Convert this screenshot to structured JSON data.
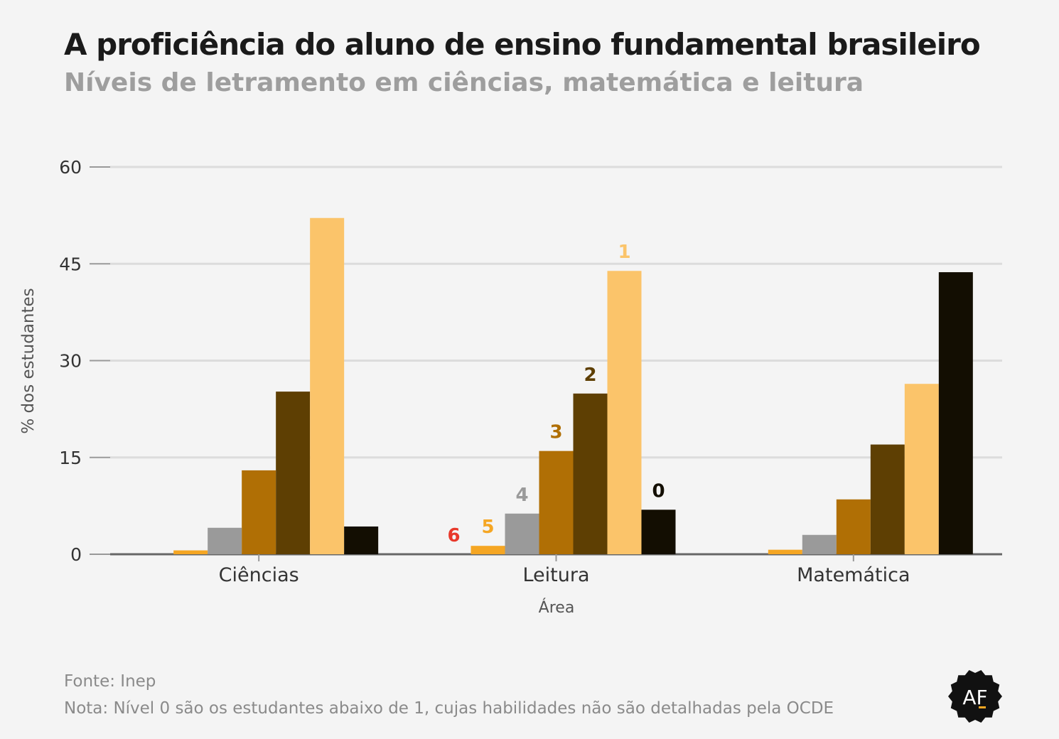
{
  "title": "A proficiência do aluno de ensino fundamental brasileiro",
  "subtitle": "Níveis de letramento em ciências, matemática e leitura",
  "footer": {
    "source": "Fonte: Inep",
    "note": "Nota: Nível 0 são os estudantes abaixo de 1, cujas habilidades não são detalhadas pela OCDE"
  },
  "logo": {
    "text": "AF",
    "icon": "af-seal-logo"
  },
  "colors": {
    "background": "#f4f4f4",
    "grid": "#dcdcdc",
    "axis": "#666666",
    "text": "#333333"
  },
  "chart_data": {
    "type": "bar",
    "xlabel": "Área",
    "ylabel": "% dos estudantes",
    "ylim": [
      0,
      60
    ],
    "yticks": [
      0,
      15,
      30,
      45,
      60
    ],
    "grid": true,
    "categories": [
      "Ciências",
      "Leitura",
      "Matemática"
    ],
    "series": [
      {
        "name": "6",
        "color": "#e8392b",
        "values": [
          0.0,
          0.0,
          0.0
        ]
      },
      {
        "name": "5",
        "color": "#f5a623",
        "values": [
          0.6,
          1.3,
          0.7
        ]
      },
      {
        "name": "4",
        "color": "#9a9a9a",
        "values": [
          4.1,
          6.3,
          3.0
        ]
      },
      {
        "name": "3",
        "color": "#b06f05",
        "values": [
          13.0,
          16.0,
          8.5
        ]
      },
      {
        "name": "2",
        "color": "#5e3f03",
        "values": [
          25.2,
          24.9,
          17.0
        ]
      },
      {
        "name": "1",
        "color": "#fbc46a",
        "values": [
          52.1,
          43.9,
          26.4
        ]
      },
      {
        "name": "0",
        "color": "#130e02",
        "values": [
          4.3,
          6.9,
          43.7
        ]
      }
    ],
    "annotations": [
      {
        "text": "6",
        "series": "6",
        "category": "Leitura",
        "color": "#e8392b"
      },
      {
        "text": "5",
        "series": "5",
        "category": "Leitura",
        "color": "#f5a623"
      },
      {
        "text": "4",
        "series": "4",
        "category": "Leitura",
        "color": "#9a9a9a"
      },
      {
        "text": "3",
        "series": "3",
        "category": "Leitura",
        "color": "#b06f05"
      },
      {
        "text": "2",
        "series": "2",
        "category": "Leitura",
        "color": "#5e3f03"
      },
      {
        "text": "1",
        "series": "1",
        "category": "Leitura",
        "color": "#fbc46a"
      },
      {
        "text": "0",
        "series": "0",
        "category": "Leitura",
        "color": "#130e02"
      }
    ]
  }
}
